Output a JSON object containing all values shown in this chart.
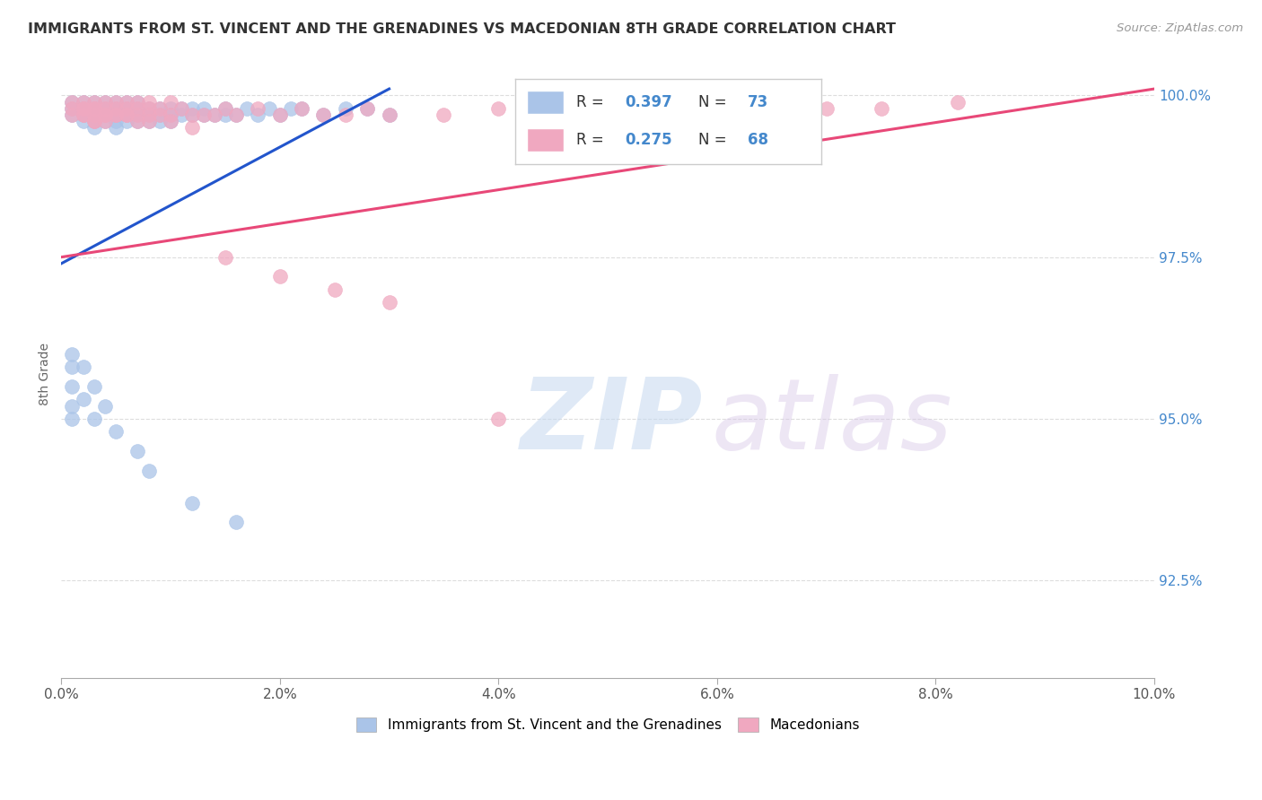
{
  "title": "IMMIGRANTS FROM ST. VINCENT AND THE GRENADINES VS MACEDONIAN 8TH GRADE CORRELATION CHART",
  "source": "Source: ZipAtlas.com",
  "ylabel_label": "8th Grade",
  "legend1_label": "Immigrants from St. Vincent and the Grenadines",
  "legend2_label": "Macedonians",
  "blue_color": "#aac4e8",
  "pink_color": "#f0a8c0",
  "blue_line_color": "#2255cc",
  "pink_line_color": "#e84878",
  "blue_line_x0": 0.0,
  "blue_line_y0": 0.974,
  "blue_line_x1": 0.03,
  "blue_line_y1": 1.001,
  "pink_line_x0": 0.0,
  "pink_line_y0": 0.975,
  "pink_line_x1": 0.1,
  "pink_line_y1": 1.001,
  "xmin": 0.0,
  "xmax": 0.1,
  "ymin": 0.91,
  "ymax": 1.004,
  "yticks": [
    0.925,
    0.95,
    0.975,
    1.0
  ],
  "ytick_labels": [
    "92.5%",
    "95.0%",
    "97.5%",
    "100.0%"
  ],
  "xtick_vals": [
    0.0,
    0.02,
    0.04,
    0.06,
    0.08,
    0.1
  ],
  "xtick_labels": [
    "0.0%",
    "2.0%",
    "4.0%",
    "6.0%",
    "8.0%",
    "10.0%"
  ],
  "legend_r1": "0.397",
  "legend_n1": "73",
  "legend_r2": "0.275",
  "legend_n2": "68",
  "blue_x": [
    0.001,
    0.001,
    0.001,
    0.002,
    0.002,
    0.002,
    0.002,
    0.003,
    0.003,
    0.003,
    0.003,
    0.003,
    0.004,
    0.004,
    0.004,
    0.004,
    0.005,
    0.005,
    0.005,
    0.005,
    0.005,
    0.006,
    0.006,
    0.006,
    0.006,
    0.007,
    0.007,
    0.007,
    0.007,
    0.008,
    0.008,
    0.008,
    0.009,
    0.009,
    0.009,
    0.01,
    0.01,
    0.01,
    0.011,
    0.011,
    0.012,
    0.012,
    0.013,
    0.013,
    0.014,
    0.015,
    0.015,
    0.016,
    0.017,
    0.018,
    0.019,
    0.02,
    0.021,
    0.022,
    0.024,
    0.026,
    0.028,
    0.03,
    0.001,
    0.001,
    0.001,
    0.001,
    0.001,
    0.002,
    0.002,
    0.003,
    0.003,
    0.004,
    0.005,
    0.007,
    0.008,
    0.012,
    0.016
  ],
  "blue_y": [
    0.999,
    0.998,
    0.997,
    0.999,
    0.998,
    0.997,
    0.996,
    0.999,
    0.998,
    0.997,
    0.996,
    0.995,
    0.999,
    0.998,
    0.997,
    0.996,
    0.999,
    0.998,
    0.997,
    0.996,
    0.995,
    0.999,
    0.998,
    0.997,
    0.996,
    0.999,
    0.998,
    0.997,
    0.996,
    0.998,
    0.997,
    0.996,
    0.998,
    0.997,
    0.996,
    0.998,
    0.997,
    0.996,
    0.998,
    0.997,
    0.998,
    0.997,
    0.998,
    0.997,
    0.997,
    0.998,
    0.997,
    0.997,
    0.998,
    0.997,
    0.998,
    0.997,
    0.998,
    0.998,
    0.997,
    0.998,
    0.998,
    0.997,
    0.96,
    0.958,
    0.955,
    0.952,
    0.95,
    0.958,
    0.953,
    0.955,
    0.95,
    0.952,
    0.948,
    0.945,
    0.942,
    0.937,
    0.934
  ],
  "pink_x": [
    0.001,
    0.001,
    0.002,
    0.002,
    0.002,
    0.003,
    0.003,
    0.003,
    0.003,
    0.004,
    0.004,
    0.004,
    0.005,
    0.005,
    0.005,
    0.006,
    0.006,
    0.006,
    0.007,
    0.007,
    0.007,
    0.008,
    0.008,
    0.008,
    0.009,
    0.009,
    0.01,
    0.01,
    0.011,
    0.012,
    0.013,
    0.014,
    0.015,
    0.016,
    0.018,
    0.02,
    0.022,
    0.024,
    0.026,
    0.028,
    0.03,
    0.035,
    0.04,
    0.045,
    0.05,
    0.06,
    0.065,
    0.07,
    0.075,
    0.082,
    0.001,
    0.002,
    0.002,
    0.003,
    0.003,
    0.004,
    0.004,
    0.005,
    0.006,
    0.007,
    0.008,
    0.01,
    0.012,
    0.015,
    0.02,
    0.025,
    0.03,
    0.04
  ],
  "pink_y": [
    0.999,
    0.998,
    0.999,
    0.998,
    0.997,
    0.999,
    0.998,
    0.997,
    0.996,
    0.999,
    0.998,
    0.997,
    0.999,
    0.998,
    0.997,
    0.999,
    0.998,
    0.997,
    0.999,
    0.998,
    0.997,
    0.999,
    0.998,
    0.997,
    0.998,
    0.997,
    0.999,
    0.997,
    0.998,
    0.997,
    0.997,
    0.997,
    0.998,
    0.997,
    0.998,
    0.997,
    0.998,
    0.997,
    0.997,
    0.998,
    0.997,
    0.997,
    0.998,
    0.998,
    0.997,
    0.998,
    0.997,
    0.998,
    0.998,
    0.999,
    0.997,
    0.998,
    0.997,
    0.998,
    0.996,
    0.997,
    0.996,
    0.997,
    0.997,
    0.996,
    0.996,
    0.996,
    0.995,
    0.975,
    0.972,
    0.97,
    0.968,
    0.95
  ]
}
